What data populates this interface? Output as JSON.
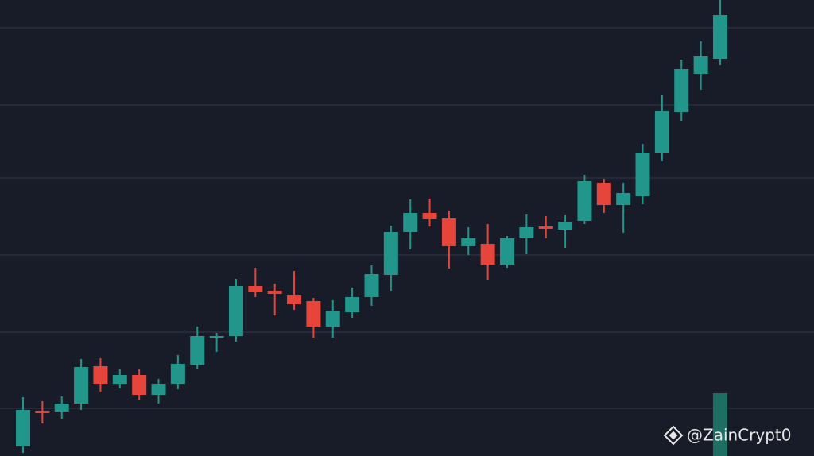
{
  "chart_data": {
    "type": "candlestick",
    "open": [
      12,
      57,
      56,
      66,
      113,
      91,
      102,
      77,
      91,
      115,
      149,
      151,
      214,
      208,
      203,
      195,
      163,
      181,
      200,
      228,
      282,
      306,
      299,
      264,
      267,
      241,
      274,
      289,
      285,
      296,
      344,
      316,
      327,
      382,
      433,
      481,
      500
    ],
    "high": [
      74,
      69,
      75,
      122,
      123,
      109,
      109,
      97,
      127,
      163,
      155,
      223,
      237,
      217,
      233,
      199,
      196,
      212,
      240,
      290,
      323,
      324,
      309,
      288,
      292,
      277,
      304,
      302,
      303,
      354,
      349,
      344,
      393,
      454,
      499,
      522,
      574
    ],
    "low": [
      4,
      41,
      47,
      58,
      81,
      85,
      70,
      66,
      84,
      110,
      131,
      144,
      200,
      177,
      184,
      149,
      149,
      174,
      189,
      208,
      260,
      289,
      236,
      253,
      222,
      237,
      254,
      274,
      262,
      292,
      306,
      281,
      317,
      371,
      422,
      461,
      492
    ],
    "close": [
      58,
      54,
      66,
      112,
      91,
      102,
      77,
      91,
      116,
      151,
      151,
      214,
      206,
      204,
      191,
      163,
      183,
      200,
      229,
      282,
      306,
      298,
      264,
      274,
      241,
      274,
      288,
      286,
      295,
      346,
      316,
      331,
      382,
      434,
      487,
      503,
      555
    ],
    "volume": [
      null,
      null,
      null,
      null,
      null,
      null,
      null,
      null,
      null,
      null,
      null,
      null,
      null,
      null,
      null,
      null,
      null,
      null,
      null,
      null,
      null,
      null,
      null,
      null,
      null,
      null,
      null,
      null,
      null,
      null,
      null,
      null,
      null,
      null,
      null,
      null,
      79
    ],
    "up_color": "#22968a",
    "down_color": "#e5453b",
    "volume_color": "#1f6e64",
    "ylim": [
      0,
      574
    ],
    "yticks": [
      60,
      156,
      253,
      350,
      442,
      539
    ],
    "grid": true,
    "watermark": "@ZainCrypt0"
  }
}
